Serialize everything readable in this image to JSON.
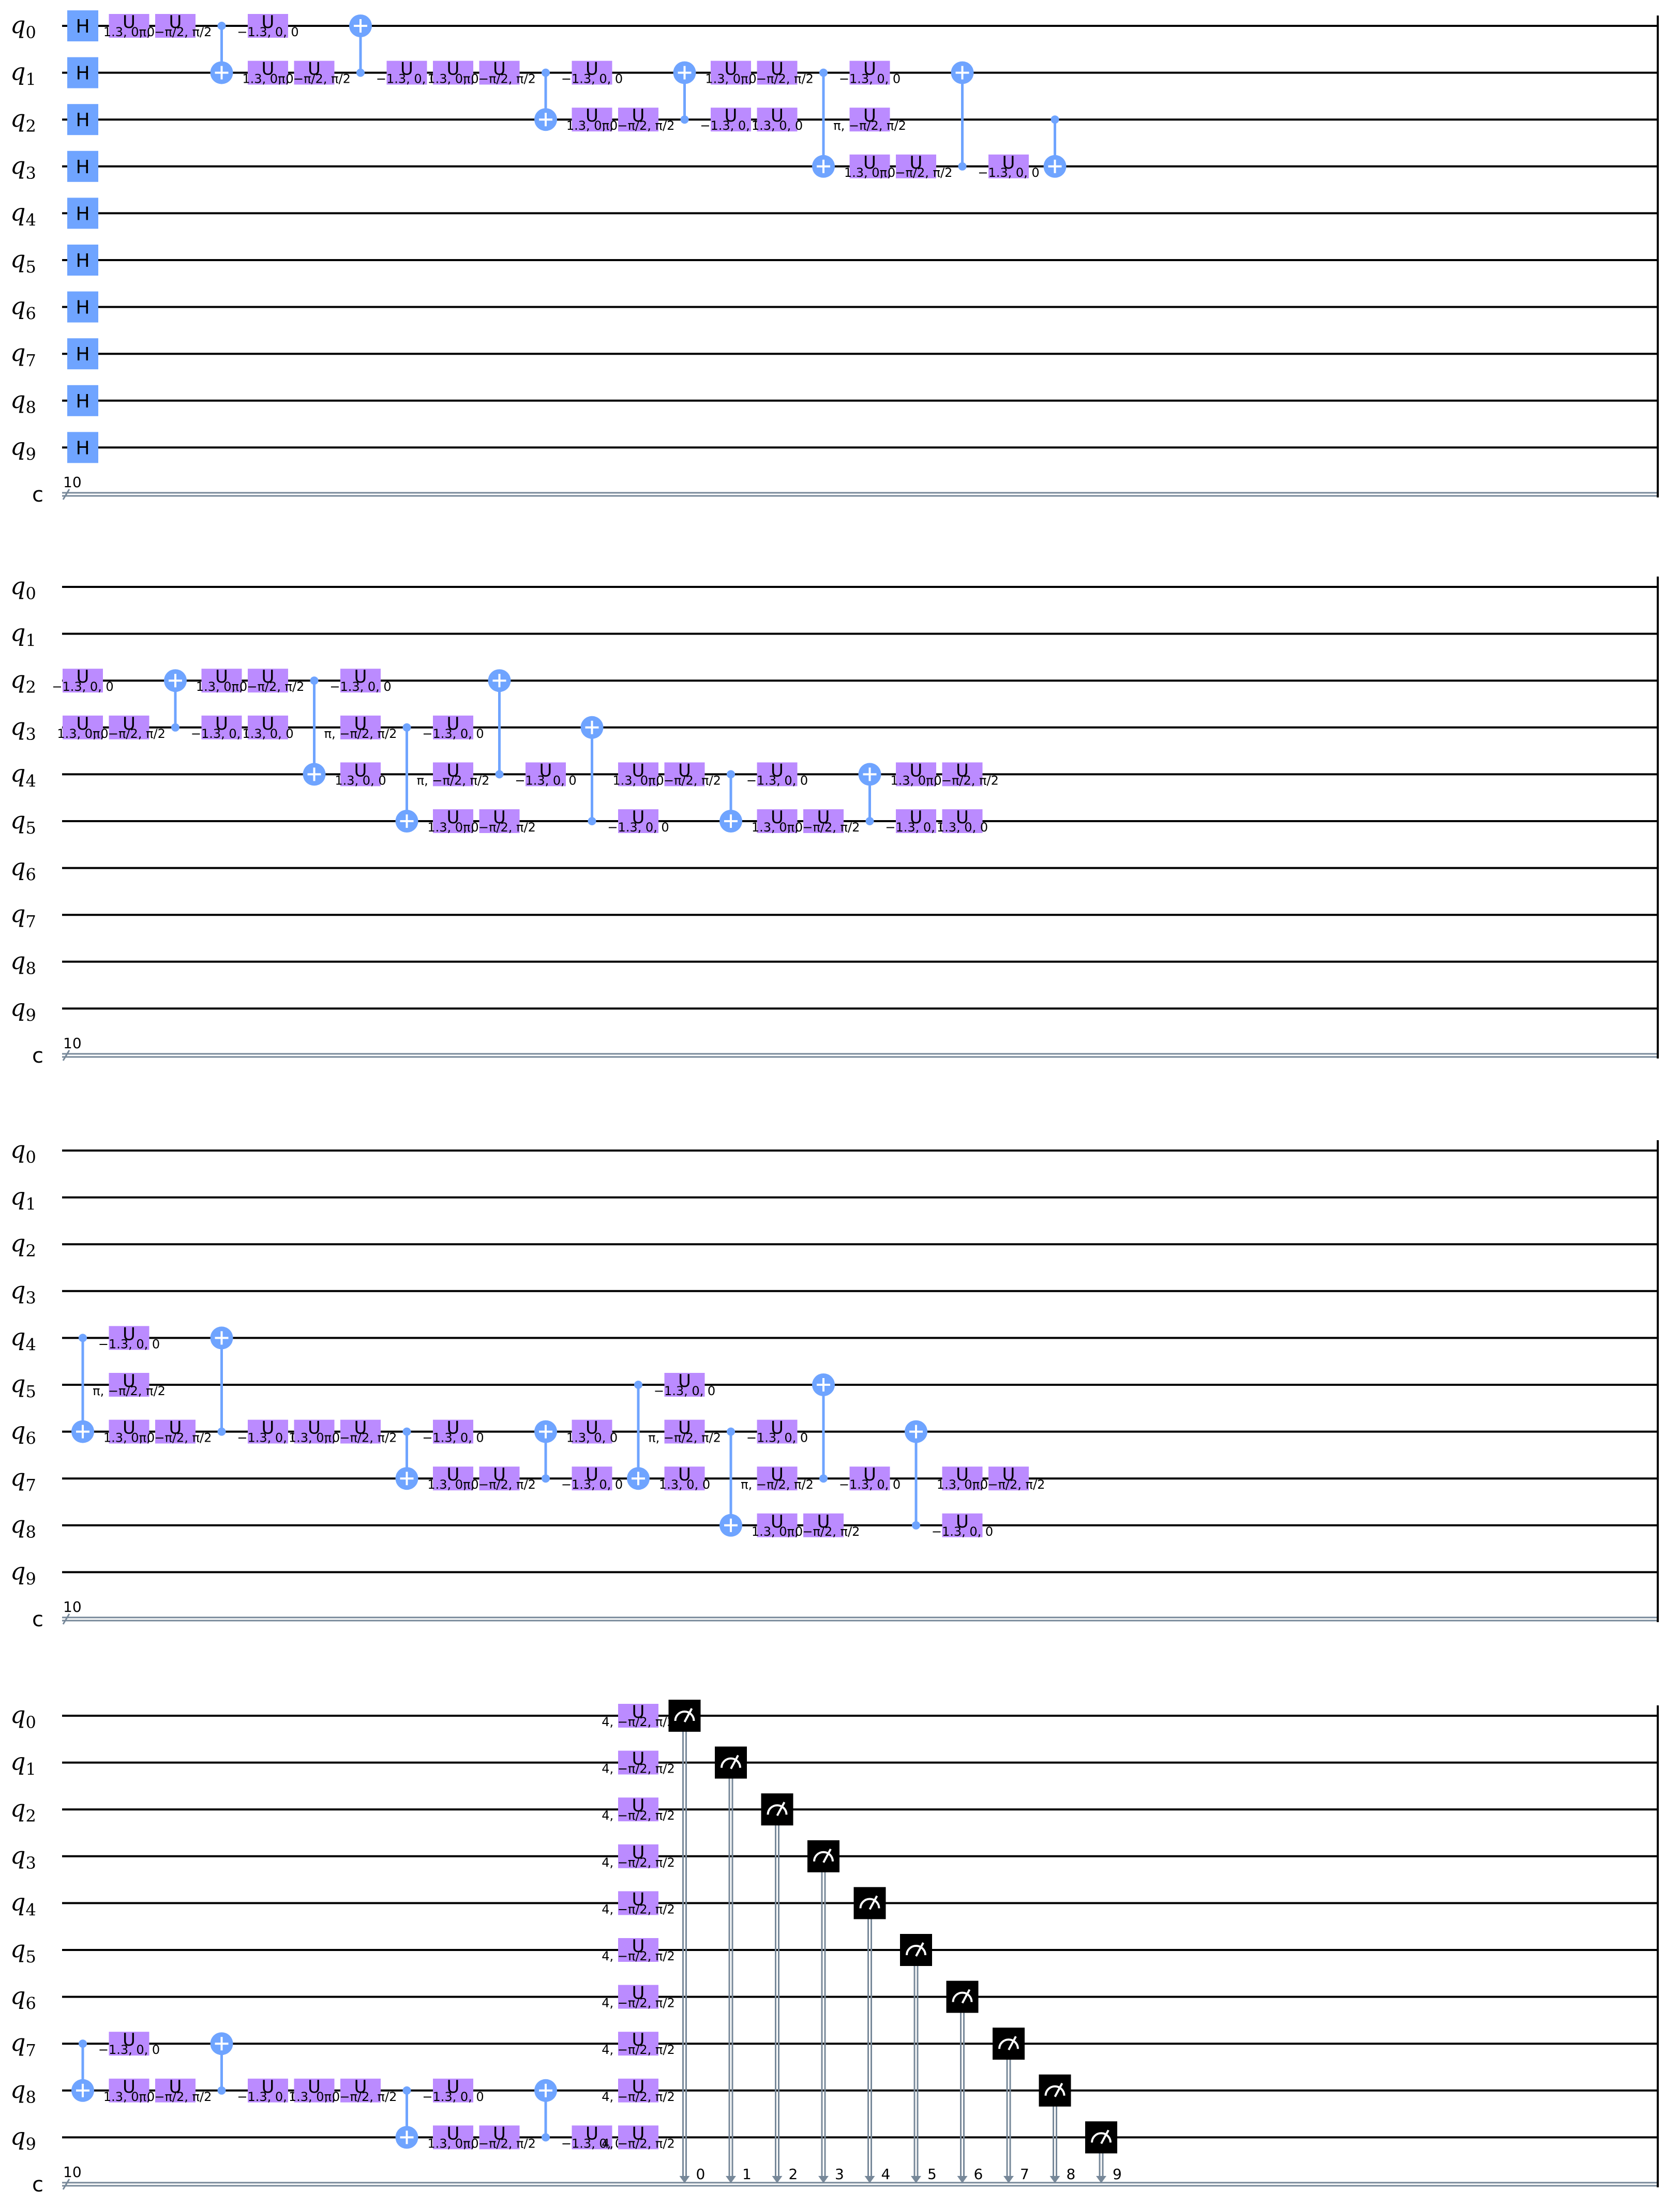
{
  "circuit": {
    "qubits": [
      "q0",
      "q1",
      "q2",
      "q3",
      "q4",
      "q5",
      "q6",
      "q7",
      "q8",
      "q9"
    ],
    "qubit_letter": "q",
    "qubit_indices": [
      "0",
      "1",
      "2",
      "3",
      "4",
      "5",
      "6",
      "7",
      "8",
      "9"
    ],
    "classical_register": "c",
    "classical_width": "10",
    "gate_letter": "U",
    "h_letter": "H",
    "params": {
      "a": "1.3, 0, 0",
      "b": "−1.3, 0, 0",
      "c": "π, −π/2, π/2",
      "d": "4, −π/2, π/2"
    },
    "colors": {
      "u_gate": "#bb8bff",
      "h_gate": "#6fa4ff",
      "cx": "#6fa4ff",
      "measure": "#000000",
      "classical_wire": "#778899"
    },
    "panels": [
      {
        "id": "panel-1",
        "ops": [
          {
            "t": "H",
            "q": [
              0,
              1,
              2,
              3,
              4,
              5,
              6,
              7,
              8,
              9
            ],
            "col": 0
          },
          {
            "t": "U",
            "q": 0,
            "p": "a",
            "col": 1
          },
          {
            "t": "U",
            "q": 0,
            "p": "c",
            "col": 2
          },
          {
            "t": "CX",
            "c": 0,
            "tq": 1,
            "col": 3
          },
          {
            "t": "U",
            "q": 0,
            "p": "b",
            "col": 4
          },
          {
            "t": "U",
            "q": 1,
            "p": "a",
            "col": 4
          },
          {
            "t": "U",
            "q": 1,
            "p": "c",
            "col": 5
          },
          {
            "t": "CX",
            "c": 1,
            "tq": 0,
            "col": 6
          },
          {
            "t": "U",
            "q": 1,
            "p": "b",
            "col": 7
          },
          {
            "t": "U",
            "q": 1,
            "p": "a",
            "col": 8
          },
          {
            "t": "U",
            "q": 1,
            "p": "c",
            "col": 9
          },
          {
            "t": "CX",
            "c": 1,
            "tq": 2,
            "col": 10
          },
          {
            "t": "U",
            "q": 1,
            "p": "b",
            "col": 11
          },
          {
            "t": "U",
            "q": 2,
            "p": "a",
            "col": 11
          },
          {
            "t": "U",
            "q": 2,
            "p": "c",
            "col": 12
          },
          {
            "t": "CX",
            "c": 2,
            "tq": 1,
            "col": 13
          },
          {
            "t": "U",
            "q": 1,
            "p": "a",
            "col": 14
          },
          {
            "t": "U",
            "q": 2,
            "p": "b",
            "col": 14
          },
          {
            "t": "U",
            "q": 1,
            "p": "c",
            "col": 15
          },
          {
            "t": "U",
            "q": 2,
            "p": "a",
            "col": 15
          },
          {
            "t": "CX",
            "c": 1,
            "tq": 3,
            "col": 16
          },
          {
            "t": "U",
            "q": 1,
            "p": "b",
            "col": 17
          },
          {
            "t": "U",
            "q": 2,
            "p": "c",
            "col": 17
          },
          {
            "t": "U",
            "q": 3,
            "p": "a",
            "col": 17
          },
          {
            "t": "U",
            "q": 3,
            "p": "c",
            "col": 18
          },
          {
            "t": "CX",
            "c": 3,
            "tq": 1,
            "col": 19
          },
          {
            "t": "U",
            "q": 3,
            "p": "b",
            "col": 20
          },
          {
            "t": "CX",
            "c": 2,
            "tq": 3,
            "col": 21
          }
        ]
      },
      {
        "id": "panel-2",
        "ops": [
          {
            "t": "U",
            "q": 2,
            "p": "b",
            "col": 0
          },
          {
            "t": "U",
            "q": 3,
            "p": "a",
            "col": 0
          },
          {
            "t": "U",
            "q": 3,
            "p": "c",
            "col": 1
          },
          {
            "t": "CX",
            "c": 3,
            "tq": 2,
            "col": 2
          },
          {
            "t": "U",
            "q": 2,
            "p": "a",
            "col": 3
          },
          {
            "t": "U",
            "q": 3,
            "p": "b",
            "col": 3
          },
          {
            "t": "U",
            "q": 2,
            "p": "c",
            "col": 4
          },
          {
            "t": "U",
            "q": 3,
            "p": "a",
            "col": 4
          },
          {
            "t": "CX",
            "c": 2,
            "tq": 4,
            "col": 5
          },
          {
            "t": "U",
            "q": 2,
            "p": "b",
            "col": 6
          },
          {
            "t": "U",
            "q": 3,
            "p": "c",
            "col": 6
          },
          {
            "t": "U",
            "q": 4,
            "p": "a",
            "col": 6
          },
          {
            "t": "CX",
            "c": 3,
            "tq": 5,
            "col": 7
          },
          {
            "t": "U",
            "q": 3,
            "p": "b",
            "col": 8
          },
          {
            "t": "U",
            "q": 4,
            "p": "c",
            "col": 8
          },
          {
            "t": "U",
            "q": 5,
            "p": "a",
            "col": 8
          },
          {
            "t": "U",
            "q": 5,
            "p": "c",
            "col": 9
          },
          {
            "t": "CX",
            "c": 4,
            "tq": 2,
            "col": 9
          },
          {
            "t": "U",
            "q": 4,
            "p": "b",
            "col": 10
          },
          {
            "t": "CX",
            "c": 5,
            "tq": 3,
            "col": 11
          },
          {
            "t": "U",
            "q": 4,
            "p": "a",
            "col": 12
          },
          {
            "t": "U",
            "q": 5,
            "p": "b",
            "col": 12
          },
          {
            "t": "U",
            "q": 4,
            "p": "c",
            "col": 13
          },
          {
            "t": "CX",
            "c": 4,
            "tq": 5,
            "col": 14
          },
          {
            "t": "U",
            "q": 4,
            "p": "b",
            "col": 15
          },
          {
            "t": "U",
            "q": 5,
            "p": "a",
            "col": 15
          },
          {
            "t": "U",
            "q": 5,
            "p": "c",
            "col": 16
          },
          {
            "t": "CX",
            "c": 5,
            "tq": 4,
            "col": 17
          },
          {
            "t": "U",
            "q": 4,
            "p": "a",
            "col": 18
          },
          {
            "t": "U",
            "q": 5,
            "p": "b",
            "col": 18
          },
          {
            "t": "U",
            "q": 4,
            "p": "c",
            "col": 19
          },
          {
            "t": "U",
            "q": 5,
            "p": "a",
            "col": 19
          }
        ]
      },
      {
        "id": "panel-3",
        "ops": [
          {
            "t": "CX",
            "c": 4,
            "tq": 6,
            "col": 0
          },
          {
            "t": "U",
            "q": 4,
            "p": "b",
            "col": 1
          },
          {
            "t": "U",
            "q": 5,
            "p": "c",
            "col": 1
          },
          {
            "t": "U",
            "q": 6,
            "p": "a",
            "col": 1
          },
          {
            "t": "U",
            "q": 6,
            "p": "c",
            "col": 2
          },
          {
            "t": "CX",
            "c": 6,
            "tq": 4,
            "col": 3
          },
          {
            "t": "U",
            "q": 6,
            "p": "b",
            "col": 4
          },
          {
            "t": "U",
            "q": 6,
            "p": "a",
            "col": 5
          },
          {
            "t": "U",
            "q": 6,
            "p": "c",
            "col": 6
          },
          {
            "t": "CX",
            "c": 6,
            "tq": 7,
            "col": 7
          },
          {
            "t": "U",
            "q": 6,
            "p": "b",
            "col": 8
          },
          {
            "t": "U",
            "q": 7,
            "p": "a",
            "col": 8
          },
          {
            "t": "U",
            "q": 7,
            "p": "c",
            "col": 9
          },
          {
            "t": "CX",
            "c": 7,
            "tq": 6,
            "col": 10
          },
          {
            "t": "U",
            "q": 6,
            "p": "a",
            "col": 11
          },
          {
            "t": "U",
            "q": 7,
            "p": "b",
            "col": 11
          },
          {
            "t": "CX",
            "c": 5,
            "tq": 7,
            "col": 12
          },
          {
            "t": "U",
            "q": 5,
            "p": "b",
            "col": 13
          },
          {
            "t": "U",
            "q": 6,
            "p": "c",
            "col": 13
          },
          {
            "t": "U",
            "q": 7,
            "p": "a",
            "col": 13
          },
          {
            "t": "CX",
            "c": 6,
            "tq": 8,
            "col": 14
          },
          {
            "t": "U",
            "q": 6,
            "p": "b",
            "col": 15
          },
          {
            "t": "U",
            "q": 7,
            "p": "c",
            "col": 15
          },
          {
            "t": "U",
            "q": 8,
            "p": "a",
            "col": 15
          },
          {
            "t": "U",
            "q": 8,
            "p": "c",
            "col": 16
          },
          {
            "t": "CX",
            "c": 7,
            "tq": 5,
            "col": 16
          },
          {
            "t": "U",
            "q": 7,
            "p": "b",
            "col": 17
          },
          {
            "t": "CX",
            "c": 8,
            "tq": 6,
            "col": 18
          },
          {
            "t": "U",
            "q": 7,
            "p": "a",
            "col": 19
          },
          {
            "t": "U",
            "q": 8,
            "p": "b",
            "col": 19
          },
          {
            "t": "U",
            "q": 7,
            "p": "c",
            "col": 20
          }
        ]
      },
      {
        "id": "panel-4",
        "ops": [
          {
            "t": "CX",
            "c": 7,
            "tq": 8,
            "col": 0
          },
          {
            "t": "U",
            "q": 7,
            "p": "b",
            "col": 1
          },
          {
            "t": "U",
            "q": 8,
            "p": "a",
            "col": 1
          },
          {
            "t": "U",
            "q": 8,
            "p": "c",
            "col": 2
          },
          {
            "t": "CX",
            "c": 8,
            "tq": 7,
            "col": 3
          },
          {
            "t": "U",
            "q": 8,
            "p": "b",
            "col": 4
          },
          {
            "t": "U",
            "q": 8,
            "p": "a",
            "col": 5
          },
          {
            "t": "U",
            "q": 8,
            "p": "c",
            "col": 6
          },
          {
            "t": "CX",
            "c": 8,
            "tq": 9,
            "col": 7
          },
          {
            "t": "U",
            "q": 8,
            "p": "b",
            "col": 8
          },
          {
            "t": "U",
            "q": 9,
            "p": "a",
            "col": 8
          },
          {
            "t": "U",
            "q": 9,
            "p": "c",
            "col": 9
          },
          {
            "t": "CX",
            "c": 9,
            "tq": 8,
            "col": 10
          },
          {
            "t": "U",
            "q": 9,
            "p": "b",
            "col": 11
          },
          {
            "t": "U",
            "q": [
              0,
              1,
              2,
              3,
              4,
              5,
              6,
              7,
              8,
              9
            ],
            "p": "d",
            "col": 12
          },
          {
            "t": "M",
            "q": 0,
            "bit": "0",
            "col": 13
          },
          {
            "t": "M",
            "q": 1,
            "bit": "1",
            "col": 14
          },
          {
            "t": "M",
            "q": 2,
            "bit": "2",
            "col": 15
          },
          {
            "t": "M",
            "q": 3,
            "bit": "3",
            "col": 16
          },
          {
            "t": "M",
            "q": 4,
            "bit": "4",
            "col": 17
          },
          {
            "t": "M",
            "q": 5,
            "bit": "5",
            "col": 18
          },
          {
            "t": "M",
            "q": 6,
            "bit": "6",
            "col": 19
          },
          {
            "t": "M",
            "q": 7,
            "bit": "7",
            "col": 20
          },
          {
            "t": "M",
            "q": 8,
            "bit": "8",
            "col": 21
          },
          {
            "t": "M",
            "q": 9,
            "bit": "9",
            "col": 22
          }
        ]
      }
    ]
  }
}
